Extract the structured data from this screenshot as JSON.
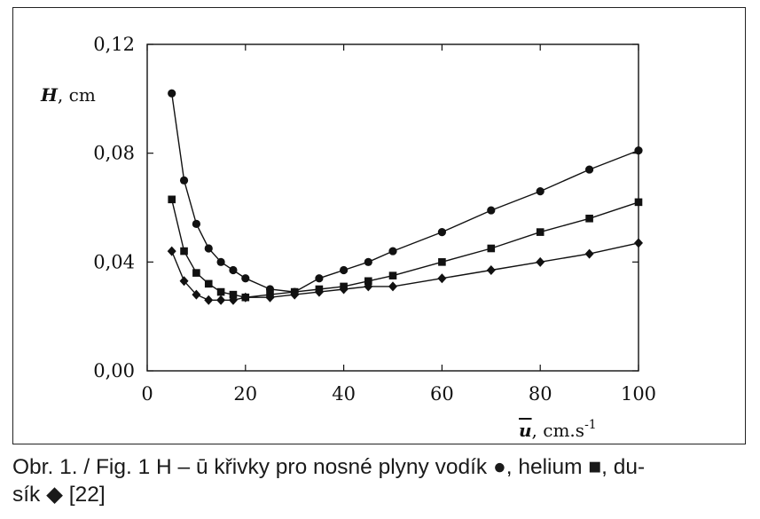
{
  "chart_data": {
    "type": "line",
    "ylabel_var": "H",
    "ylabel_unit": ", cm",
    "xlabel_var": "u",
    "xlabel_unit": ", cm.s",
    "xlabel_exp": "-1",
    "xlim": [
      0,
      100
    ],
    "ylim": [
      0.0,
      0.12
    ],
    "xticks": [
      0,
      20,
      40,
      60,
      80,
      100
    ],
    "xtick_labels": [
      "0",
      "20",
      "40",
      "60",
      "80",
      "100"
    ],
    "yticks": [
      0.0,
      0.04,
      0.08,
      0.12
    ],
    "ytick_labels": [
      "0,00",
      "0,04",
      "0,08",
      "0,12"
    ],
    "grid": false,
    "series": [
      {
        "name": "vodík",
        "marker": "circle",
        "color": "#111111",
        "points": [
          [
            5,
            0.102
          ],
          [
            7.5,
            0.07
          ],
          [
            10,
            0.054
          ],
          [
            12.5,
            0.045
          ],
          [
            15,
            0.04
          ],
          [
            17.5,
            0.037
          ],
          [
            20,
            0.034
          ],
          [
            25,
            0.03
          ],
          [
            30,
            0.029
          ],
          [
            35,
            0.034
          ],
          [
            40,
            0.037
          ],
          [
            45,
            0.04
          ],
          [
            50,
            0.044
          ],
          [
            60,
            0.051
          ],
          [
            70,
            0.059
          ],
          [
            80,
            0.066
          ],
          [
            90,
            0.074
          ],
          [
            100,
            0.081
          ]
        ]
      },
      {
        "name": "helium",
        "marker": "square",
        "color": "#111111",
        "points": [
          [
            5,
            0.063
          ],
          [
            7.5,
            0.044
          ],
          [
            10,
            0.036
          ],
          [
            12.5,
            0.032
          ],
          [
            15,
            0.029
          ],
          [
            17.5,
            0.028
          ],
          [
            20,
            0.027
          ],
          [
            25,
            0.028
          ],
          [
            30,
            0.029
          ],
          [
            35,
            0.03
          ],
          [
            40,
            0.031
          ],
          [
            45,
            0.033
          ],
          [
            50,
            0.035
          ],
          [
            60,
            0.04
          ],
          [
            70,
            0.045
          ],
          [
            80,
            0.051
          ],
          [
            90,
            0.056
          ],
          [
            100,
            0.062
          ]
        ]
      },
      {
        "name": "dusík",
        "marker": "diamond",
        "color": "#111111",
        "points": [
          [
            5,
            0.044
          ],
          [
            7.5,
            0.033
          ],
          [
            10,
            0.028
          ],
          [
            12.5,
            0.026
          ],
          [
            15,
            0.026
          ],
          [
            17.5,
            0.026
          ],
          [
            20,
            0.027
          ],
          [
            25,
            0.027
          ],
          [
            30,
            0.028
          ],
          [
            35,
            0.029
          ],
          [
            40,
            0.03
          ],
          [
            45,
            0.031
          ],
          [
            50,
            0.031
          ],
          [
            60,
            0.034
          ],
          [
            70,
            0.037
          ],
          [
            80,
            0.04
          ],
          [
            90,
            0.043
          ],
          [
            100,
            0.047
          ]
        ]
      }
    ]
  },
  "caption": {
    "line1": "Obr. 1. / Fig. 1 H – ū křivky pro nosné plyny vodík ●, helium ■, du-",
    "line2": "sík ◆ [22]"
  }
}
